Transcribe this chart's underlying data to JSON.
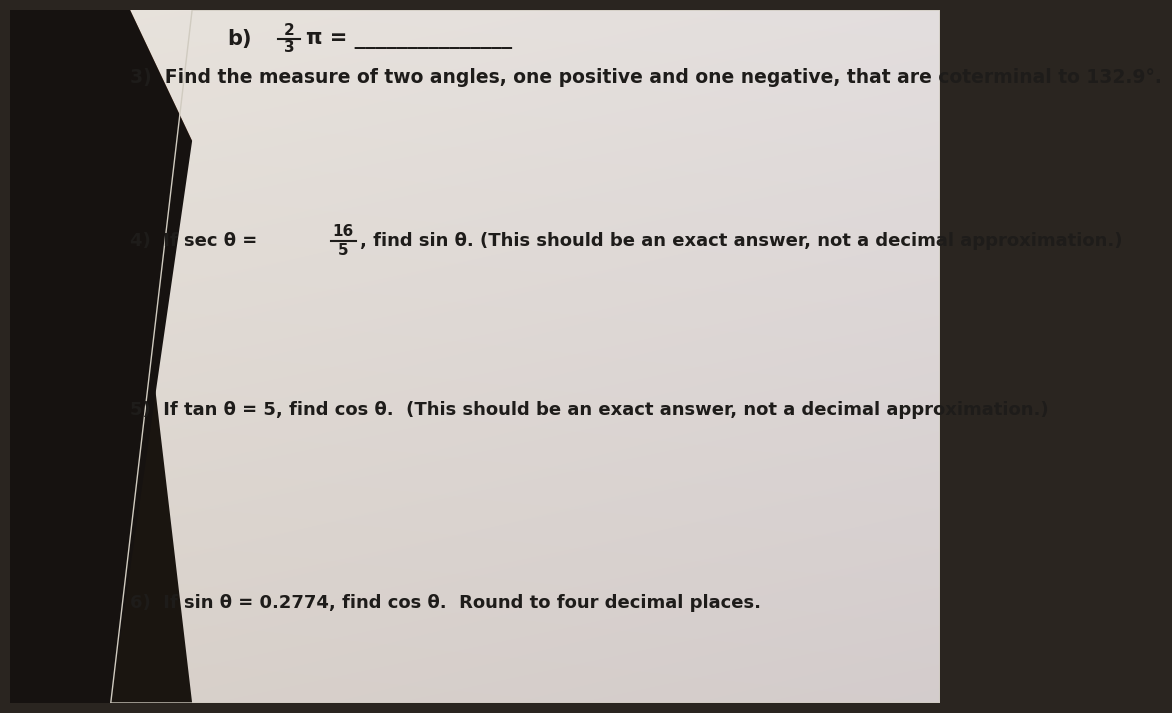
{
  "bg_color": "#2a2520",
  "paper_color_tl": "#e8e4df",
  "paper_color_tr": "#ddd8c8",
  "paper_color_br": "#c8c4c0",
  "paper_color_bl": "#d0ccc8",
  "text_color": "#1e1c1a",
  "q_b_label": "b)",
  "q_b_frac_num": "2",
  "q_b_frac_den": "3",
  "q_b_pi": "π = ",
  "q3": "3)  Find the measure of two angles, one positive and one negative, that are coterminal to 132.9°.",
  "q4_a": "4)  If sec θ = ",
  "q4_frac_num": "16",
  "q4_frac_den": "5",
  "q4_b": ", find sin θ. (This should be an exact answer, not a decimal approximation.)",
  "q5": "5)  If tan θ = 5, find cos θ.  (This should be an exact answer, not a decimal approximation.)",
  "q6": "6)  If sin θ = 0.2774, find cos θ.  Round to four decimal places.",
  "underline_b": "_______________"
}
